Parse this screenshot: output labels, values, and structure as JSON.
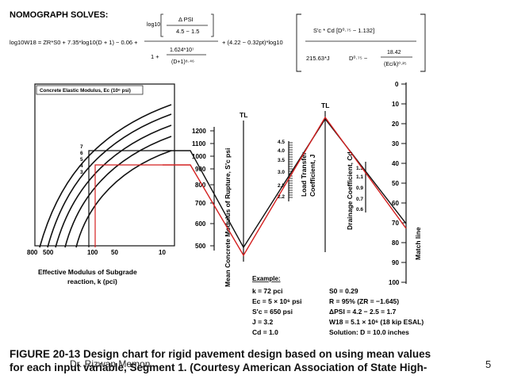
{
  "header": {
    "title": "NOMOGRAPH SOLVES:",
    "eq_left": "log10W18 = ZR*S0 + 7.35*log10(D + 1) − 0.06 +",
    "eq_log10": "log10",
    "eq_dpsi": "Δ PSI",
    "eq_dpsi_den": "4.5 − 1.5",
    "eq_denom_one": "1 +",
    "eq_denom_frac_num": "1.624*10⁷",
    "eq_denom_frac_den": "(D+1)⁸·⁴⁶",
    "eq_mid": "+ (4.22 − 0.32pt)*log10",
    "eq_right_num": "S'c * Cd [D⁰·⁷⁵ − 1.132]",
    "eq_right_den_a": "215.63*J",
    "eq_right_den_b": "D⁰·⁷⁵ −",
    "eq_right_den_c_num": "18.42",
    "eq_right_den_c_den": "(Ec/k)⁰·²⁵"
  },
  "panels": {
    "ec_box_label": "Concrete Elastic Modulus, Ec (10⁶ psi)",
    "ec_curve_labels": [
      "7",
      "6",
      "5",
      "4",
      "3"
    ],
    "k_axis_ticks": [
      "800",
      "500",
      "100",
      "50",
      "10"
    ],
    "k_axis_title_1": "Effective Modulus of Subgrade",
    "k_axis_title_2": "reaction, k (pci)",
    "sc_ticks": [
      "1200",
      "1100",
      "1000",
      "900",
      "800",
      "700",
      "600",
      "500"
    ],
    "sc_axis_title": "Mean Concrete Modulus of Rupture, S'c psi",
    "tl_label": "TL",
    "j_ticks": [
      "4.5",
      "4.0",
      "3.5",
      "3.0",
      "2.5",
      "2.2"
    ],
    "j_axis_title_1": "Load Transfer",
    "j_axis_title_2": "Coefficient, J",
    "cd_ticks": [
      "1.3",
      "1.1",
      "0.9",
      "0.7",
      "0.6"
    ],
    "cd_axis_title": "Drainage Coefficient, Cd",
    "match_ticks": [
      "0",
      "10",
      "20",
      "30",
      "40",
      "50",
      "60",
      "70",
      "80",
      "90",
      "100"
    ],
    "match_title": "Match line"
  },
  "example": {
    "title": "Example:",
    "left": [
      "k = 72 pci",
      "Ec = 5 × 10⁶ psi",
      "S'c = 650 psi",
      "J = 3.2",
      "Cd = 1.0"
    ],
    "right": [
      "S0 = 0.29",
      "R = 95% (ZR = −1.645)",
      "ΔPSI = 4.2 − 2.5 = 1.7",
      "W18 = 5.1 × 10⁶ (18 kip ESAL)",
      "Solution: D = 10.0 inches"
    ]
  },
  "caption": {
    "line1": "FIGURE 20-13 Design chart for rigid pavement design based on using mean values",
    "line2": "for each input variable, Segment 1. (Courtesy American Association of State High-",
    "watermark": "Dr. Rizwan Memon",
    "page": "5"
  },
  "colors": {
    "solution_line": "#d42020",
    "ink": "#111111"
  }
}
